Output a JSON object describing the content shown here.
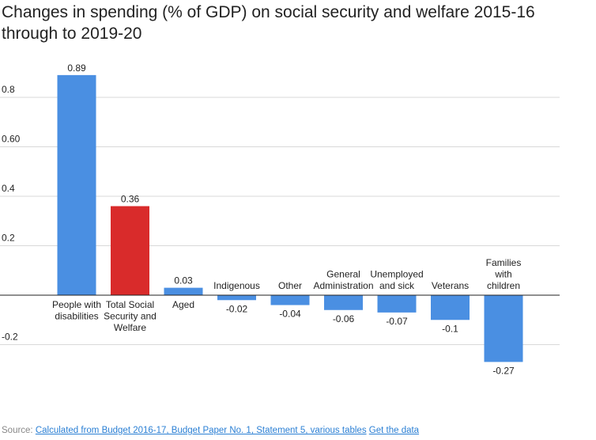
{
  "title": "Changes in spending (% of GDP) on social security and welfare 2015-16 through to 2019-20",
  "source": {
    "prefix": "Source:",
    "link_text": "Calculated from Budget 2016-17, Budget Paper No. 1, Statement 5, various tables",
    "data_link_text": "Get the data"
  },
  "chart_data": {
    "type": "bar",
    "title": "Changes in spending (% of GDP) on social security and welfare 2015-16 through to 2019-20",
    "xlabel": "",
    "ylabel": "",
    "categories": [
      [
        "People with",
        "disabilities"
      ],
      [
        "Total Social",
        "Security and",
        "Welfare"
      ],
      [
        "Aged"
      ],
      [
        "Indigenous"
      ],
      [
        "Other"
      ],
      [
        "General",
        "Administration"
      ],
      [
        "Unemployed",
        "and sick"
      ],
      [
        "Veterans"
      ],
      [
        "Families",
        "with",
        "children"
      ]
    ],
    "values": [
      0.89,
      0.36,
      0.03,
      -0.02,
      -0.04,
      -0.06,
      -0.07,
      -0.1,
      -0.27
    ],
    "value_labels": [
      "0.89",
      "0.36",
      "0.03",
      "-0.02",
      "-0.04",
      "-0.06",
      "-0.07",
      "-0.1",
      "-0.27"
    ],
    "colors": [
      "#4a8fe2",
      "#d92b2b",
      "#4a8fe2",
      "#4a8fe2",
      "#4a8fe2",
      "#4a8fe2",
      "#4a8fe2",
      "#4a8fe2",
      "#4a8fe2"
    ],
    "yticks": [
      {
        "value": 0.8,
        "label": "0.8"
      },
      {
        "value": 0.6,
        "label": "0.60"
      },
      {
        "value": 0.4,
        "label": "0.4"
      },
      {
        "value": 0.2,
        "label": "0.2"
      },
      {
        "value": -0.2,
        "label": "-0.2"
      }
    ],
    "ylim": [
      -0.36,
      0.96
    ],
    "grid": true,
    "legend": "none"
  }
}
